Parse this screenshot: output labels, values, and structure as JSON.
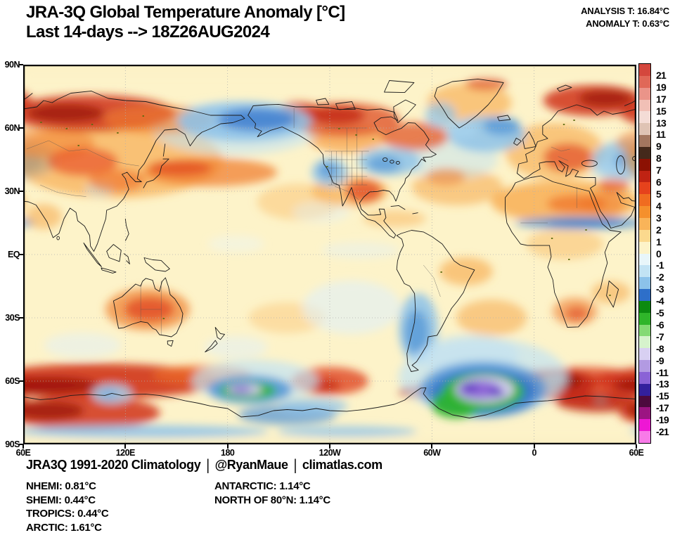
{
  "header": {
    "title_line1": "JRA-3Q Global Temperature Anomaly [°C]",
    "title_line2": "Last 14-days --> 18Z26AUG2024",
    "analysis": "ANALYSIS T: 16.84°C",
    "anomaly": "ANOMALY T: 0.63°C"
  },
  "map": {
    "x_ticks": [
      "60E",
      "120E",
      "180",
      "120W",
      "60W",
      "0",
      "60E"
    ],
    "y_ticks": [
      "90N",
      "60N",
      "30N",
      "EQ",
      "30S",
      "60S",
      "90S"
    ]
  },
  "colorbar": {
    "tick_labels": [
      "21",
      "19",
      "17",
      "15",
      "13",
      "11",
      "9",
      "8",
      "7",
      "6",
      "5",
      "4",
      "3",
      "2",
      "1",
      "0",
      "-1",
      "-2",
      "-3",
      "-4",
      "-5",
      "-6",
      "-7",
      "-8",
      "-9",
      "-11",
      "-13",
      "-15",
      "-17",
      "-19",
      "-21"
    ],
    "segment_colors": [
      "#d4473d",
      "#e06858",
      "#ea9489",
      "#f1c0b6",
      "#f4dcd6",
      "#dfc3b4",
      "#a3765f",
      "#44291b",
      "#8c1103",
      "#c02313",
      "#e6421c",
      "#f06c20",
      "#f5902c",
      "#f9b459",
      "#fbd98e",
      "#fdf3c9",
      "#e8f6fa",
      "#c2e3f4",
      "#8cc2ea",
      "#2e6fc9",
      "#0c8a10",
      "#2fb52a",
      "#84da74",
      "#d6f3cc",
      "#d8d0f2",
      "#b29ae2",
      "#8a62d6",
      "#33209d",
      "#4c0a3e",
      "#9c1482",
      "#ee17d4",
      "#f87ae8"
    ]
  },
  "footer": {
    "credit_parts": [
      "JRA3Q 1991-2020 Climatology",
      "@RyanMaue",
      "climatlas.com"
    ],
    "separator": "|",
    "stats_col1": [
      "NHEMI: 0.81°C",
      "SHEMI: 0.44°C",
      "TROPICS: 0.44°C",
      "ARCTIC: 1.61°C"
    ],
    "stats_col2": [
      "ANTARCTIC: 1.14°C",
      "NORTH OF 80°N: 1.14°C"
    ]
  }
}
